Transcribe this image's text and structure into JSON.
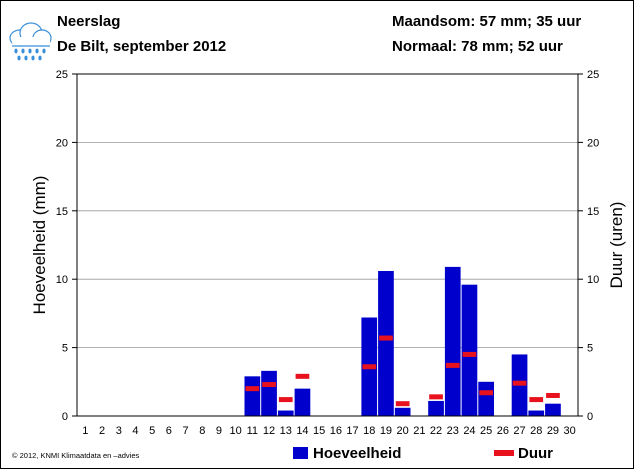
{
  "header": {
    "title": "Neerslag",
    "subtitle": "De Bilt, september 2012",
    "monthly_sum": "Maandsom: 57 mm; 35 uur",
    "normal": "Normaal: 78 mm; 52 uur",
    "weather_icon": "rain-cloud-icon"
  },
  "footer": {
    "copyright": "© 2012, KNMI Klimaatdata en –advies"
  },
  "colors": {
    "bar": "#0000cc",
    "duration_marker": "#e8121e",
    "grid": "#999999"
  },
  "chart_data": {
    "type": "bar",
    "categories": [
      "1",
      "2",
      "3",
      "4",
      "5",
      "6",
      "7",
      "8",
      "9",
      "10",
      "11",
      "12",
      "13",
      "14",
      "15",
      "16",
      "17",
      "18",
      "19",
      "20",
      "21",
      "22",
      "23",
      "24",
      "25",
      "26",
      "27",
      "28",
      "29",
      "30"
    ],
    "series": [
      {
        "name": "Hoeveelheid",
        "axis": "left",
        "style": "bar",
        "values": [
          0,
          0,
          0,
          0,
          0,
          0,
          0,
          0,
          0,
          0,
          2.9,
          3.3,
          0.4,
          2.0,
          0,
          0,
          0,
          7.2,
          10.6,
          0.6,
          0,
          1.1,
          10.9,
          9.6,
          2.5,
          0,
          4.5,
          0.4,
          0.9,
          0
        ]
      },
      {
        "name": "Duur",
        "axis": "right",
        "style": "marker",
        "values": [
          null,
          null,
          null,
          null,
          null,
          null,
          null,
          null,
          null,
          null,
          2.0,
          2.3,
          1.2,
          2.9,
          null,
          null,
          null,
          3.6,
          5.7,
          0.9,
          null,
          1.4,
          3.7,
          4.5,
          1.7,
          null,
          2.4,
          1.2,
          1.5,
          null
        ]
      }
    ],
    "ylabel": "Hoeveelheid (mm)",
    "y2label": "Duur (uren)",
    "ylim": [
      0,
      25
    ],
    "y2lim": [
      0,
      25
    ],
    "yticks": [
      0,
      5,
      10,
      15,
      20,
      25
    ],
    "grid": true,
    "legend": "bottom-right"
  }
}
